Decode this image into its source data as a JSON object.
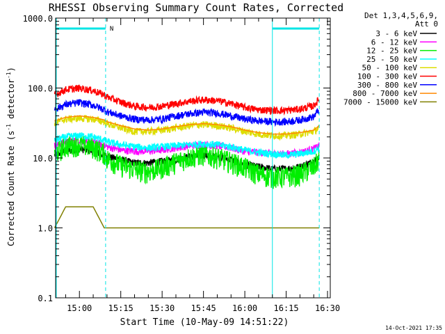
{
  "chart_data": {
    "type": "line",
    "title": "RHESSI Observing Summary Count Rates, Corrected",
    "xlabel": "Start Time (10-May-09 14:51:22)",
    "ylabel_main": "Corrected Count Rate (s",
    "ylabel_sup1": "-1",
    "ylabel_mid": " detector",
    "ylabel_sup2": "-1",
    "ylabel_end": ")",
    "yscale": "log",
    "xlim": [
      "14:51:22",
      "16:31:00"
    ],
    "ylim": [
      0.1,
      1000
    ],
    "x_ticks": [
      "15:00",
      "15:15",
      "15:30",
      "15:45",
      "16:00",
      "16:15",
      "16:30"
    ],
    "y_ticks": [
      "0.1",
      "1.0",
      "10.0",
      "100.0",
      "1000.0"
    ],
    "legend_header": [
      "Det 1,3,4,5,6,9,",
      "Att 0"
    ],
    "legend_position": "right",
    "night_flag_label": "N",
    "footer_date": "14-Oct-2021 17:35",
    "night_intervals": [
      [
        "14:51:22",
        "15:09:30"
      ],
      [
        "16:10:00",
        "16:27:00"
      ]
    ],
    "night_flag_color": "#00e5e5",
    "sample_times": [
      "14:51",
      "14:55",
      "15:00",
      "15:05",
      "15:09",
      "15:10",
      "15:15",
      "15:20",
      "15:25",
      "15:30",
      "15:35",
      "15:40",
      "15:45",
      "15:50",
      "15:55",
      "16:00",
      "16:05",
      "16:10",
      "16:15",
      "16:20",
      "16:25",
      "16:27"
    ],
    "series": [
      {
        "name": "3 - 6 keV",
        "color": "#000000",
        "values": [
          11,
          12.5,
          13.5,
          12.5,
          11,
          10.5,
          9.5,
          8.5,
          8.5,
          9,
          9.5,
          10.5,
          11,
          10.5,
          9.5,
          8,
          7.5,
          7,
          7,
          7.5,
          9,
          10.5
        ]
      },
      {
        "name": "6 - 12 keV",
        "color": "#ff00ff",
        "values": [
          15,
          17,
          18,
          17,
          15,
          14.5,
          13,
          12.5,
          12.5,
          13,
          14,
          15,
          15.5,
          15,
          14,
          12.5,
          12,
          11.5,
          11.5,
          12,
          13.5,
          15
        ]
      },
      {
        "name": "12 - 25 keV",
        "color": "#00ee00",
        "values": [
          12,
          15,
          16,
          14.5,
          12,
          10,
          8,
          7,
          6.5,
          7.5,
          9,
          10.5,
          11.5,
          10.5,
          9,
          7.5,
          6,
          5.5,
          5.5,
          6,
          7.5,
          10
        ]
      },
      {
        "name": "25 - 50 keV",
        "color": "#00ffff",
        "values": [
          18,
          20,
          21,
          20,
          18,
          17,
          15.5,
          14.5,
          14,
          14.5,
          15,
          15.5,
          16,
          15.5,
          14.5,
          13,
          12,
          11.5,
          11,
          11.5,
          12.5,
          14
        ]
      },
      {
        "name": "50 - 100 keV",
        "color": "#dddd00",
        "values": [
          32,
          36,
          37,
          36,
          33,
          31,
          27,
          24,
          24,
          25,
          27,
          29,
          30,
          29,
          27,
          24,
          22,
          21,
          21,
          22,
          24,
          27
        ]
      },
      {
        "name": "100 - 300 keV",
        "color": "#ff0000",
        "values": [
          80,
          95,
          100,
          92,
          80,
          75,
          63,
          55,
          53,
          55,
          60,
          65,
          68,
          66,
          60,
          53,
          49,
          48,
          48,
          50,
          56,
          70
        ]
      },
      {
        "name": "300 - 800 keV",
        "color": "#0000ff",
        "values": [
          50,
          58,
          62,
          57,
          49,
          46,
          40,
          36,
          35,
          36,
          40,
          43,
          45,
          44,
          40,
          36,
          34,
          33,
          33,
          35,
          39,
          50
        ]
      },
      {
        "name": "800 - 7000 keV",
        "color": "#ff8800",
        "values": [
          34,
          38,
          40,
          38,
          35,
          33,
          29,
          26,
          25,
          26,
          28,
          30,
          31,
          30,
          28,
          25,
          23,
          22,
          22,
          23,
          25,
          29
        ]
      },
      {
        "name": "7000 - 15000 keV",
        "color": "#808000",
        "values": [
          1.0,
          2.0,
          2.0,
          2.0,
          1.0,
          1.0,
          1.0,
          1.0,
          1.0,
          1.0,
          1.0,
          1.0,
          1.0,
          1.0,
          1.0,
          1.0,
          1.0,
          1.0,
          1.0,
          1.0,
          1.0,
          1.0
        ]
      }
    ]
  }
}
